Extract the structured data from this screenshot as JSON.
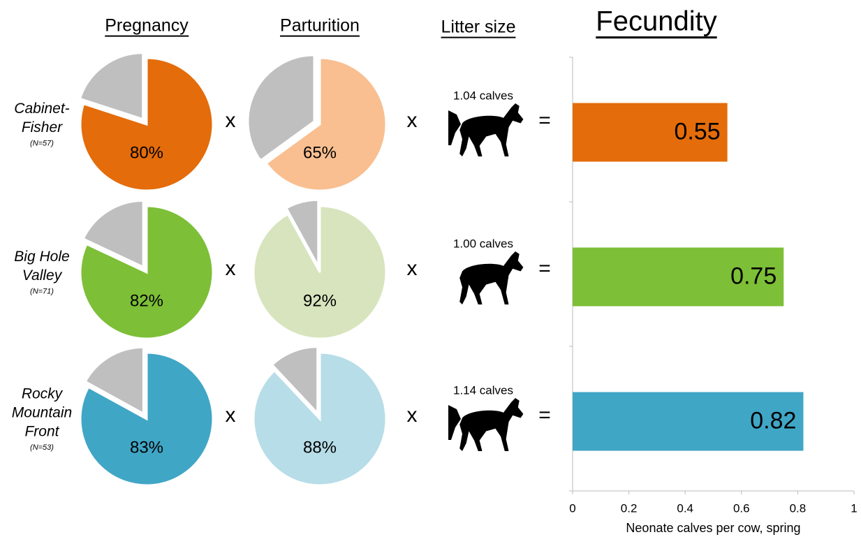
{
  "populations": [
    {
      "name": [
        "Cabinet-",
        "Fisher"
      ],
      "n": "(N=57)"
    },
    {
      "name": [
        "Big Hole",
        "Valley"
      ],
      "n": "(N=71)"
    },
    {
      "name": [
        "Rocky",
        "Mountain",
        "Front"
      ],
      "n": "(N=53)"
    }
  ],
  "litter_size": {
    "title": "Litter size",
    "labels": [
      "1.04 calves",
      "1.00 calves",
      "1.14 calves"
    ]
  },
  "operators": {
    "times": "x",
    "equals": "="
  },
  "chart_data": [
    {
      "type": "pie",
      "title": "Pregnancy",
      "values": [
        80,
        82,
        83
      ],
      "value_labels": [
        "80%",
        "82%",
        "83%"
      ],
      "colors": [
        "#e46c0a",
        "#7dbf37",
        "#40a6c6"
      ],
      "rest_color": "#bfbfbf"
    },
    {
      "type": "pie",
      "title": "Parturition",
      "values": [
        65,
        92,
        88
      ],
      "value_labels": [
        "65%",
        "92%",
        "88%"
      ],
      "colors": [
        "#f9bf90",
        "#d7e4bd",
        "#b7dde8"
      ],
      "rest_color": "#bfbfbf"
    },
    {
      "type": "bar",
      "orientation": "horizontal",
      "title": "Fecundity",
      "categories": [
        null,
        null,
        null
      ],
      "values": [
        0.55,
        0.75,
        0.82
      ],
      "colors": [
        "#e46c0a",
        "#7dbf37",
        "#40a6c6"
      ],
      "xlim": [
        0,
        1
      ],
      "xticks": [
        0,
        0.2,
        0.4,
        0.6,
        0.8,
        1
      ],
      "xlabel": "Neonate calves per cow, spring"
    }
  ]
}
